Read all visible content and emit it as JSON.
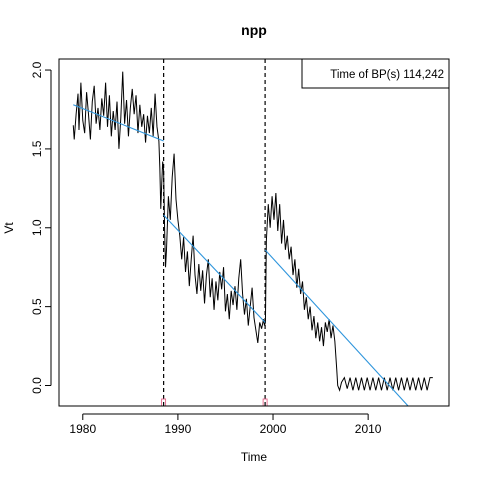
{
  "chart_data": {
    "type": "line",
    "title": "npp",
    "xlabel": "Time",
    "ylabel": "Vt",
    "xlim": [
      1977.5,
      2018.5
    ],
    "ylim": [
      -0.13,
      2.07
    ],
    "x_ticks": [
      1980,
      1990,
      2000,
      2010
    ],
    "y_ticks": [
      0.0,
      0.5,
      1.0,
      1.5,
      2.0
    ],
    "x_tick_labels": [
      "1980",
      "1990",
      "2000",
      "2010"
    ],
    "y_tick_labels": [
      "0.0",
      "0.5",
      "1.0",
      "1.5",
      "2.0"
    ],
    "grid": false,
    "legend_text": "Time of BP(s) 114,242",
    "legend_position": "top-right",
    "breakpoints": [
      1988.5,
      1999.167
    ],
    "series": [
      {
        "color": "#000000",
        "points": [
          [
            1979.0,
            1.65
          ],
          [
            1979.1,
            1.56
          ],
          [
            1979.3,
            1.72
          ],
          [
            1979.5,
            1.85
          ],
          [
            1979.6,
            1.62
          ],
          [
            1979.8,
            1.92
          ],
          [
            1980.0,
            1.68
          ],
          [
            1980.2,
            1.6
          ],
          [
            1980.4,
            1.86
          ],
          [
            1980.6,
            1.72
          ],
          [
            1980.8,
            1.56
          ],
          [
            1981.0,
            1.8
          ],
          [
            1981.2,
            1.9
          ],
          [
            1981.4,
            1.66
          ],
          [
            1981.6,
            1.76
          ],
          [
            1981.8,
            1.62
          ],
          [
            1982.0,
            1.82
          ],
          [
            1982.2,
            1.71
          ],
          [
            1982.4,
            1.92
          ],
          [
            1982.6,
            1.64
          ],
          [
            1982.8,
            1.84
          ],
          [
            1983.0,
            1.58
          ],
          [
            1983.2,
            1.74
          ],
          [
            1983.4,
            1.62
          ],
          [
            1983.6,
            1.8
          ],
          [
            1983.8,
            1.5
          ],
          [
            1984.0,
            1.7
          ],
          [
            1984.2,
            1.99
          ],
          [
            1984.4,
            1.66
          ],
          [
            1984.6,
            1.81
          ],
          [
            1984.8,
            1.58
          ],
          [
            1985.0,
            1.76
          ],
          [
            1985.2,
            1.88
          ],
          [
            1985.4,
            1.72
          ],
          [
            1985.6,
            1.84
          ],
          [
            1985.8,
            1.6
          ],
          [
            1986.0,
            1.78
          ],
          [
            1986.2,
            1.64
          ],
          [
            1986.4,
            1.72
          ],
          [
            1986.6,
            1.54
          ],
          [
            1986.8,
            1.71
          ],
          [
            1987.0,
            1.6
          ],
          [
            1987.2,
            1.76
          ],
          [
            1987.4,
            1.58
          ],
          [
            1987.6,
            1.85
          ],
          [
            1987.8,
            1.64
          ],
          [
            1988.0,
            1.55
          ],
          [
            1988.1,
            1.38
          ],
          [
            1988.2,
            1.12
          ],
          [
            1988.3,
            1.28
          ],
          [
            1988.4,
            1.42
          ],
          [
            1988.5,
            1.36
          ],
          [
            1988.6,
            1.0
          ],
          [
            1988.7,
            0.75
          ],
          [
            1988.8,
            0.86
          ],
          [
            1989.0,
            1.2
          ],
          [
            1989.2,
            1.05
          ],
          [
            1989.4,
            1.32
          ],
          [
            1989.6,
            1.47
          ],
          [
            1989.8,
            1.18
          ],
          [
            1990.0,
            1.05
          ],
          [
            1990.2,
            0.95
          ],
          [
            1990.4,
            0.8
          ],
          [
            1990.6,
            0.94
          ],
          [
            1990.8,
            0.72
          ],
          [
            1991.0,
            0.85
          ],
          [
            1991.2,
            0.63
          ],
          [
            1991.4,
            0.8
          ],
          [
            1991.6,
            0.95
          ],
          [
            1991.8,
            0.7
          ],
          [
            1992.0,
            0.58
          ],
          [
            1992.2,
            0.77
          ],
          [
            1992.4,
            0.6
          ],
          [
            1992.6,
            0.73
          ],
          [
            1992.8,
            0.52
          ],
          [
            1993.0,
            0.7
          ],
          [
            1993.2,
            0.8
          ],
          [
            1993.4,
            0.56
          ],
          [
            1993.6,
            0.68
          ],
          [
            1993.8,
            0.48
          ],
          [
            1994.0,
            0.66
          ],
          [
            1994.2,
            0.54
          ],
          [
            1994.4,
            0.72
          ],
          [
            1994.6,
            0.61
          ],
          [
            1994.8,
            0.75
          ],
          [
            1995.0,
            0.47
          ],
          [
            1995.2,
            0.58
          ],
          [
            1995.4,
            0.42
          ],
          [
            1995.6,
            0.6
          ],
          [
            1995.8,
            0.51
          ],
          [
            1996.0,
            0.63
          ],
          [
            1996.2,
            0.48
          ],
          [
            1996.4,
            0.68
          ],
          [
            1996.6,
            0.8
          ],
          [
            1996.8,
            0.58
          ],
          [
            1997.0,
            0.45
          ],
          [
            1997.2,
            0.55
          ],
          [
            1997.4,
            0.38
          ],
          [
            1997.6,
            0.5
          ],
          [
            1997.8,
            0.62
          ],
          [
            1998.0,
            0.43
          ],
          [
            1998.2,
            0.35
          ],
          [
            1998.4,
            0.27
          ],
          [
            1998.6,
            0.4
          ],
          [
            1998.8,
            0.36
          ],
          [
            1999.0,
            0.42
          ],
          [
            1999.1,
            0.38
          ],
          [
            1999.2,
            0.4
          ],
          [
            1999.3,
            0.92
          ],
          [
            1999.5,
            1.15
          ],
          [
            1999.7,
            1.0
          ],
          [
            1999.9,
            1.2
          ],
          [
            2000.1,
            1.05
          ],
          [
            2000.3,
            1.22
          ],
          [
            2000.5,
            0.98
          ],
          [
            2000.7,
            1.15
          ],
          [
            2000.9,
            0.9
          ],
          [
            2001.1,
            1.05
          ],
          [
            2001.3,
            0.86
          ],
          [
            2001.5,
            0.95
          ],
          [
            2001.7,
            0.8
          ],
          [
            2001.9,
            0.88
          ],
          [
            2002.1,
            0.7
          ],
          [
            2002.3,
            0.8
          ],
          [
            2002.5,
            0.62
          ],
          [
            2002.7,
            0.74
          ],
          [
            2002.9,
            0.58
          ],
          [
            2003.1,
            0.66
          ],
          [
            2003.3,
            0.48
          ],
          [
            2003.5,
            0.56
          ],
          [
            2003.7,
            0.42
          ],
          [
            2003.9,
            0.5
          ],
          [
            2004.1,
            0.35
          ],
          [
            2004.3,
            0.44
          ],
          [
            2004.5,
            0.3
          ],
          [
            2004.7,
            0.4
          ],
          [
            2004.9,
            0.28
          ],
          [
            2005.1,
            0.37
          ],
          [
            2005.3,
            0.25
          ],
          [
            2005.5,
            0.4
          ],
          [
            2005.7,
            0.34
          ],
          [
            2005.9,
            0.42
          ],
          [
            2006.1,
            0.3
          ],
          [
            2006.3,
            0.38
          ],
          [
            2006.5,
            0.28
          ],
          [
            2006.7,
            0.1
          ],
          [
            2006.8,
            0.0
          ],
          [
            2007.0,
            -0.03
          ],
          [
            2007.2,
            0.02
          ],
          [
            2007.5,
            0.05
          ],
          [
            2007.8,
            -0.02
          ],
          [
            2008.1,
            0.05
          ],
          [
            2008.4,
            -0.03
          ],
          [
            2008.7,
            0.05
          ],
          [
            2009.0,
            -0.03
          ],
          [
            2009.3,
            0.05
          ],
          [
            2009.6,
            -0.03
          ],
          [
            2009.9,
            0.05
          ],
          [
            2010.2,
            -0.03
          ],
          [
            2010.5,
            0.05
          ],
          [
            2010.8,
            -0.03
          ],
          [
            2011.1,
            0.05
          ],
          [
            2011.4,
            -0.03
          ],
          [
            2011.7,
            0.05
          ],
          [
            2012.0,
            -0.03
          ],
          [
            2012.3,
            0.05
          ],
          [
            2012.6,
            -0.03
          ],
          [
            2012.9,
            0.05
          ],
          [
            2013.2,
            -0.03
          ],
          [
            2013.5,
            0.05
          ],
          [
            2013.8,
            -0.03
          ],
          [
            2014.1,
            0.05
          ],
          [
            2014.4,
            -0.03
          ],
          [
            2014.7,
            0.05
          ],
          [
            2015.0,
            -0.03
          ],
          [
            2015.3,
            0.05
          ],
          [
            2015.6,
            -0.03
          ],
          [
            2015.9,
            0.05
          ],
          [
            2016.2,
            -0.03
          ],
          [
            2016.5,
            0.05
          ],
          [
            2016.8,
            0.05
          ]
        ]
      },
      {
        "color": "#2e95dc",
        "segments": [
          [
            [
              1979.0,
              1.78
            ],
            [
              1988.5,
              1.55
            ]
          ],
          [
            [
              1988.5,
              1.08
            ],
            [
              1999.167,
              0.4
            ]
          ],
          [
            [
              1999.167,
              0.86
            ],
            [
              2014.2,
              -0.13
            ]
          ]
        ]
      }
    ]
  }
}
